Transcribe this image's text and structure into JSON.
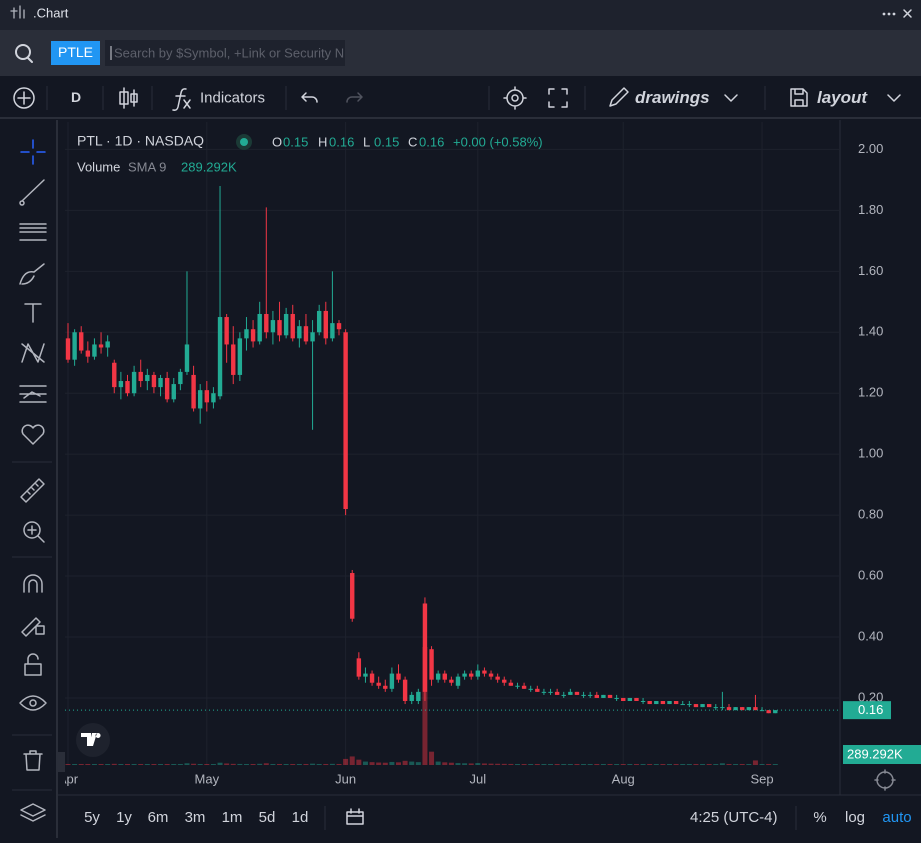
{
  "app_title": ".Chart",
  "search": {
    "symbol": "PTLE",
    "placeholder": "Search by $Symbol, +Link or Security N"
  },
  "toolbar": {
    "interval": "D",
    "indicators": "Indicators",
    "drawings": "drawings",
    "layout": "layout"
  },
  "bottom_bar": {
    "ranges": [
      "5y",
      "1y",
      "6m",
      "3m",
      "1m",
      "5d",
      "1d"
    ],
    "time": "4:25 (UTC-4)",
    "percent": "%",
    "log": "log",
    "auto": "auto"
  },
  "chart_data": {
    "type": "candlestick",
    "legend": {
      "title": "PTL · 1D · NASDAQ",
      "fields": [
        {
          "label": "O",
          "value": "0.15"
        },
        {
          "label": "H",
          "value": "0.16"
        },
        {
          "label": "L",
          "value": "0.15"
        },
        {
          "label": "C",
          "value": "0.16"
        }
      ],
      "change": "+0.00 (+0.58%)",
      "volume_name": "Volume",
      "volume_study": "SMA 9",
      "volume_value": "289.292K"
    },
    "up_color": "#22ab94",
    "down_color": "#f23645",
    "categories": [
      "Apr",
      null,
      null,
      null,
      null,
      null,
      null,
      null,
      null,
      null,
      null,
      null,
      null,
      null,
      null,
      null,
      null,
      null,
      null,
      null,
      null,
      "May",
      null,
      null,
      null,
      null,
      null,
      null,
      null,
      null,
      null,
      null,
      null,
      null,
      null,
      null,
      null,
      null,
      null,
      null,
      null,
      null,
      "Jun",
      null,
      null,
      null,
      null,
      null,
      null,
      null,
      null,
      null,
      null,
      null,
      null,
      null,
      null,
      null,
      null,
      null,
      null,
      null,
      "Jul",
      null,
      null,
      null,
      null,
      null,
      null,
      null,
      null,
      null,
      null,
      null,
      null,
      null,
      null,
      null,
      null,
      null,
      null,
      null,
      null,
      null,
      "Aug",
      null,
      null,
      null,
      null,
      null,
      null,
      null,
      null,
      null,
      null,
      null,
      null,
      null,
      null,
      null,
      null,
      null,
      null,
      null,
      null,
      "Sep",
      null,
      null
    ],
    "open": [
      1.38,
      1.31,
      1.4,
      1.34,
      1.32,
      1.36,
      1.35,
      1.3,
      1.22,
      1.24,
      1.2,
      1.27,
      1.24,
      1.26,
      1.22,
      1.25,
      1.18,
      1.23,
      1.27,
      1.26,
      1.15,
      1.21,
      1.17,
      1.19,
      1.45,
      1.36,
      1.26,
      1.38,
      1.41,
      1.37,
      1.46,
      1.4,
      1.44,
      1.39,
      1.46,
      1.38,
      1.42,
      1.37,
      1.4,
      1.47,
      1.38,
      1.43,
      1.4,
      0.61,
      0.33,
      0.27,
      0.28,
      0.25,
      0.24,
      0.23,
      0.28,
      0.26,
      0.19,
      0.19,
      0.51,
      0.36,
      0.26,
      0.28,
      0.26,
      0.24,
      0.27,
      0.28,
      0.27,
      0.29,
      0.28,
      0.27,
      0.26,
      0.25,
      0.24,
      0.24,
      0.23,
      0.23,
      0.22,
      0.22,
      0.22,
      0.21,
      0.21,
      0.22,
      0.21,
      0.21,
      0.21,
      0.2,
      0.21,
      0.2,
      0.2,
      0.19,
      0.2,
      0.19,
      0.19,
      0.18,
      0.19,
      0.18,
      0.19,
      0.18,
      0.18,
      0.18,
      0.17,
      0.18,
      0.17,
      0.17,
      0.17,
      0.16,
      0.17,
      0.16,
      0.17,
      0.16,
      0.16,
      0.15
    ],
    "high": [
      1.43,
      1.41,
      1.42,
      1.37,
      1.38,
      1.4,
      1.39,
      1.31,
      1.27,
      1.26,
      1.29,
      1.31,
      1.28,
      1.27,
      1.26,
      1.27,
      1.25,
      1.28,
      1.6,
      1.29,
      1.23,
      1.24,
      1.22,
      1.88,
      1.46,
      1.42,
      1.4,
      1.45,
      1.44,
      1.5,
      1.81,
      1.47,
      1.5,
      1.48,
      1.49,
      1.44,
      1.46,
      1.44,
      1.49,
      1.5,
      1.6,
      1.44,
      1.41,
      0.62,
      0.35,
      0.3,
      0.29,
      0.27,
      0.26,
      0.3,
      0.31,
      0.27,
      0.22,
      0.23,
      0.53,
      0.37,
      0.29,
      0.29,
      0.27,
      0.28,
      0.29,
      0.29,
      0.31,
      0.3,
      0.29,
      0.28,
      0.27,
      0.26,
      0.25,
      0.25,
      0.24,
      0.24,
      0.23,
      0.23,
      0.23,
      0.22,
      0.23,
      0.22,
      0.22,
      0.22,
      0.22,
      0.21,
      0.21,
      0.21,
      0.2,
      0.2,
      0.2,
      0.2,
      0.19,
      0.19,
      0.19,
      0.19,
      0.19,
      0.19,
      0.19,
      0.18,
      0.18,
      0.18,
      0.18,
      0.22,
      0.18,
      0.17,
      0.17,
      0.17,
      0.21,
      0.17,
      0.16,
      0.16
    ],
    "low": [
      1.3,
      1.29,
      1.33,
      1.3,
      1.31,
      1.33,
      1.32,
      1.2,
      1.18,
      1.19,
      1.19,
      1.22,
      1.21,
      1.2,
      1.19,
      1.17,
      1.17,
      1.21,
      1.26,
      1.14,
      1.1,
      1.14,
      1.15,
      1.18,
      1.3,
      1.23,
      1.24,
      1.34,
      1.35,
      1.36,
      1.38,
      1.36,
      1.37,
      1.38,
      1.37,
      1.35,
      1.36,
      1.08,
      1.39,
      1.36,
      1.37,
      1.39,
      0.8,
      0.45,
      0.26,
      0.25,
      0.24,
      0.23,
      0.22,
      0.22,
      0.25,
      0.18,
      0.18,
      0.18,
      0.19,
      0.24,
      0.25,
      0.25,
      0.24,
      0.23,
      0.26,
      0.26,
      0.26,
      0.27,
      0.26,
      0.25,
      0.24,
      0.24,
      0.23,
      0.23,
      0.22,
      0.22,
      0.21,
      0.21,
      0.21,
      0.2,
      0.21,
      0.21,
      0.2,
      0.2,
      0.2,
      0.2,
      0.2,
      0.19,
      0.19,
      0.19,
      0.19,
      0.18,
      0.18,
      0.18,
      0.18,
      0.18,
      0.18,
      0.18,
      0.17,
      0.17,
      0.17,
      0.17,
      0.16,
      0.16,
      0.16,
      0.16,
      0.16,
      0.16,
      0.16,
      0.16,
      0.15,
      0.15
    ],
    "close": [
      1.31,
      1.4,
      1.34,
      1.32,
      1.36,
      1.35,
      1.37,
      1.22,
      1.24,
      1.2,
      1.27,
      1.24,
      1.26,
      1.22,
      1.25,
      1.18,
      1.23,
      1.27,
      1.36,
      1.15,
      1.21,
      1.17,
      1.2,
      1.45,
      1.36,
      1.26,
      1.38,
      1.41,
      1.37,
      1.46,
      1.4,
      1.44,
      1.39,
      1.46,
      1.38,
      1.42,
      1.37,
      1.4,
      1.47,
      1.38,
      1.43,
      1.41,
      0.82,
      0.46,
      0.27,
      0.28,
      0.25,
      0.24,
      0.23,
      0.28,
      0.26,
      0.19,
      0.21,
      0.22,
      0.22,
      0.26,
      0.28,
      0.26,
      0.25,
      0.27,
      0.28,
      0.27,
      0.29,
      0.28,
      0.27,
      0.26,
      0.25,
      0.24,
      0.24,
      0.23,
      0.23,
      0.22,
      0.22,
      0.22,
      0.21,
      0.21,
      0.22,
      0.21,
      0.21,
      0.21,
      0.2,
      0.21,
      0.2,
      0.2,
      0.19,
      0.2,
      0.19,
      0.19,
      0.18,
      0.19,
      0.18,
      0.19,
      0.18,
      0.18,
      0.18,
      0.17,
      0.18,
      0.17,
      0.17,
      0.17,
      0.16,
      0.17,
      0.16,
      0.17,
      0.16,
      0.16,
      0.15,
      0.16
    ],
    "volume": [
      420,
      380,
      510,
      300,
      350,
      290,
      330,
      610,
      450,
      400,
      380,
      350,
      300,
      320,
      280,
      400,
      360,
      340,
      900,
      650,
      500,
      420,
      380,
      1200,
      800,
      600,
      550,
      480,
      450,
      620,
      900,
      500,
      480,
      450,
      420,
      400,
      380,
      700,
      520,
      480,
      600,
      450,
      3200,
      4500,
      2800,
      1800,
      1500,
      1300,
      1200,
      1600,
      1400,
      2200,
      1800,
      1500,
      62000,
      7000,
      1800,
      1400,
      1200,
      1000,
      900,
      800,
      1000,
      800,
      700,
      650,
      600,
      550,
      500,
      480,
      460,
      440,
      420,
      400,
      380,
      380,
      420,
      360,
      340,
      330,
      320,
      310,
      300,
      300,
      290,
      300,
      280,
      280,
      270,
      260,
      260,
      250,
      250,
      240,
      240,
      230,
      240,
      230,
      220,
      900,
      300,
      280,
      260,
      270,
      2400,
      300,
      280,
      289.292
    ],
    "ylim": [
      -0.02,
      2.09
    ],
    "yticks": [
      {
        "value": 0.2,
        "label": "0.20"
      },
      {
        "value": 0.4,
        "label": "0.40"
      },
      {
        "value": 0.6,
        "label": "0.60"
      },
      {
        "value": 0.8,
        "label": "0.80"
      },
      {
        "value": 1.0,
        "label": "1.00"
      },
      {
        "value": 1.2,
        "label": "1.20"
      },
      {
        "value": 1.4,
        "label": "1.40"
      },
      {
        "value": 1.6,
        "label": "1.60"
      },
      {
        "value": 1.8,
        "label": "1.80"
      },
      {
        "value": 2.0,
        "label": "2.00"
      }
    ],
    "last_price": 0.16,
    "grid": true
  }
}
